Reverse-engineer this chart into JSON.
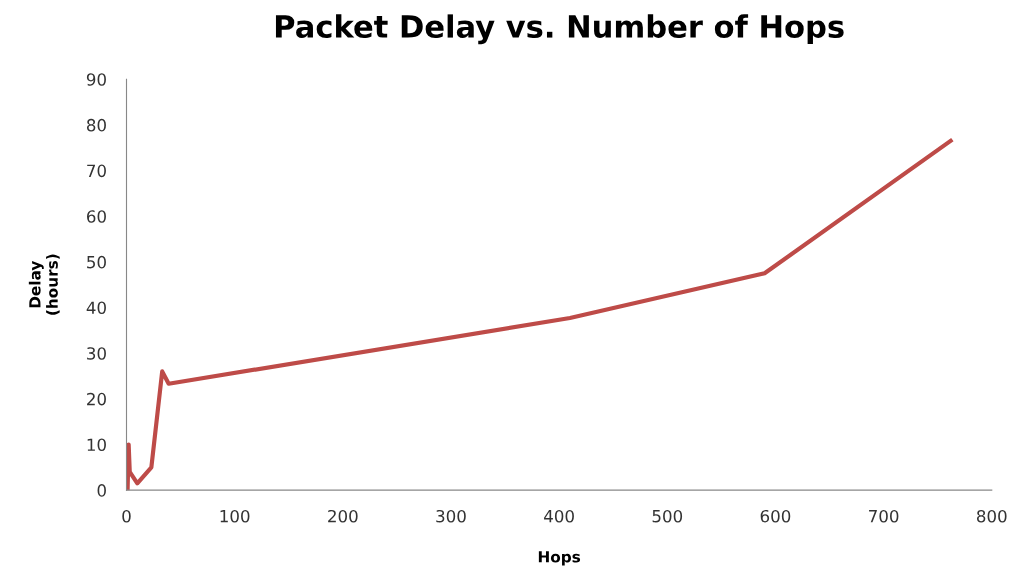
{
  "chart_data": {
    "type": "line",
    "title": "Packet Delay vs. Number of Hops",
    "xlabel": "Hops",
    "ylabel": "Delay\n(hours)",
    "series": [
      {
        "color": "#be4b48",
        "x": [
          1,
          2,
          3,
          10,
          23,
          33,
          39,
          410,
          590,
          762
        ],
        "values": [
          0,
          10,
          4,
          1.5,
          5,
          26,
          23.3,
          37.7,
          47.5,
          76.5
        ]
      }
    ],
    "xlim": [
      0,
      800
    ],
    "xticks": [
      0,
      100,
      200,
      300,
      400,
      500,
      600,
      700,
      800
    ],
    "ylim": [
      0,
      90
    ],
    "yticks": [
      0,
      10,
      20,
      30,
      40,
      50,
      60,
      70,
      80,
      90
    ],
    "grid": false,
    "legend": false,
    "marker": "none",
    "line_style": "solid"
  }
}
